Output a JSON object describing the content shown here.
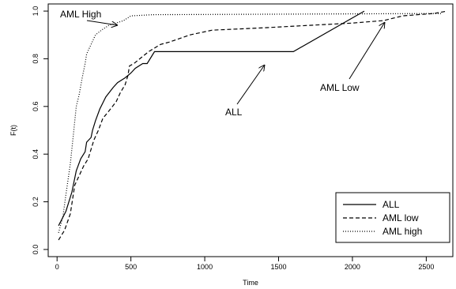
{
  "chart_data": {
    "type": "line",
    "xlabel": "Time",
    "ylabel": "F(t)",
    "xlim": [
      -60,
      2680
    ],
    "ylim": [
      -0.03,
      1.03
    ],
    "x_ticks": [
      0,
      500,
      1000,
      1500,
      2000,
      2500
    ],
    "y_ticks": [
      0.0,
      0.2,
      0.4,
      0.6,
      0.8,
      1.0
    ],
    "x_tick_labels": [
      "0",
      "500",
      "1000",
      "1500",
      "2000",
      "2500"
    ],
    "y_tick_labels": [
      "0.0",
      "0.2",
      "0.4",
      "0.6",
      "0.8",
      "1.0"
    ],
    "grid": false,
    "legend_position": "bottom-right",
    "series": [
      {
        "name": "ALL",
        "style": "solid",
        "points": [
          [
            10,
            0.1
          ],
          [
            60,
            0.16
          ],
          [
            100,
            0.24
          ],
          [
            130,
            0.33
          ],
          [
            160,
            0.38
          ],
          [
            190,
            0.41
          ],
          [
            200,
            0.45
          ],
          [
            230,
            0.47
          ],
          [
            240,
            0.5
          ],
          [
            260,
            0.54
          ],
          [
            290,
            0.59
          ],
          [
            330,
            0.64
          ],
          [
            380,
            0.68
          ],
          [
            410,
            0.7
          ],
          [
            460,
            0.72
          ],
          [
            480,
            0.73
          ],
          [
            500,
            0.74
          ],
          [
            530,
            0.76
          ],
          [
            580,
            0.78
          ],
          [
            610,
            0.78
          ],
          [
            660,
            0.83
          ],
          [
            1600,
            0.83
          ],
          [
            2080,
            1.0
          ]
        ]
      },
      {
        "name": "AML low",
        "style": "dashed",
        "points": [
          [
            10,
            0.04
          ],
          [
            50,
            0.08
          ],
          [
            90,
            0.15
          ],
          [
            120,
            0.27
          ],
          [
            150,
            0.31
          ],
          [
            180,
            0.35
          ],
          [
            210,
            0.38
          ],
          [
            250,
            0.46
          ],
          [
            280,
            0.5
          ],
          [
            310,
            0.55
          ],
          [
            350,
            0.58
          ],
          [
            400,
            0.62
          ],
          [
            430,
            0.66
          ],
          [
            460,
            0.69
          ],
          [
            480,
            0.73
          ],
          [
            490,
            0.77
          ],
          [
            520,
            0.78
          ],
          [
            560,
            0.8
          ],
          [
            620,
            0.83
          ],
          [
            700,
            0.86
          ],
          [
            760,
            0.87
          ],
          [
            900,
            0.9
          ],
          [
            1050,
            0.92
          ],
          [
            1400,
            0.93
          ],
          [
            1700,
            0.94
          ],
          [
            2000,
            0.95
          ],
          [
            2210,
            0.96
          ],
          [
            2340,
            0.98
          ],
          [
            2550,
            0.99
          ],
          [
            2640,
            1.0
          ]
        ]
      },
      {
        "name": "AML high",
        "style": "dotted",
        "points": [
          [
            10,
            0.07
          ],
          [
            40,
            0.14
          ],
          [
            60,
            0.23
          ],
          [
            90,
            0.36
          ],
          [
            110,
            0.48
          ],
          [
            130,
            0.6
          ],
          [
            150,
            0.65
          ],
          [
            170,
            0.72
          ],
          [
            190,
            0.78
          ],
          [
            200,
            0.82
          ],
          [
            230,
            0.86
          ],
          [
            260,
            0.9
          ],
          [
            300,
            0.92
          ],
          [
            350,
            0.94
          ],
          [
            400,
            0.95
          ],
          [
            450,
            0.96
          ],
          [
            500,
            0.98
          ],
          [
            650,
            0.985
          ],
          [
            2600,
            0.99
          ]
        ]
      }
    ],
    "annotations": [
      {
        "text": "AML High",
        "arrow_to": [
          420,
          0.95
        ]
      },
      {
        "text": "ALL",
        "arrow_to": [
          1400,
          0.83
        ]
      },
      {
        "text": "AML Low",
        "arrow_to": [
          2210,
          0.96
        ]
      }
    ],
    "legend": [
      "ALL",
      "AML low",
      "AML high"
    ]
  }
}
